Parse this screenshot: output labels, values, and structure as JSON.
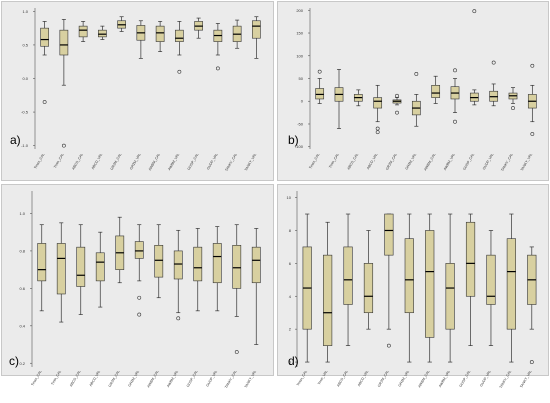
{
  "colors": {
    "panel_bg": "#ebebeb",
    "box_fill": "#d8d0a0",
    "box_stroke": "#333333",
    "axis": "#555555",
    "tick_text": "#333333"
  },
  "chart_data": [
    {
      "type": "box",
      "panel_label": "a)",
      "ylim": [
        -1.05,
        1.05
      ],
      "yticks": [
        -1.0,
        -0.5,
        0.0,
        0.5,
        1.0
      ],
      "ytick_labels": [
        "-1.0",
        "-0.5",
        "0.0",
        "0.5",
        "1.0"
      ],
      "categories": [
        "Tmax_CAL",
        "Tmin_CAL",
        "ABCD_CAL",
        "ABCD_VAL",
        "GR2M_CAL",
        "GR2M_VAL",
        "AWBM_CAL",
        "AWBM_VAL",
        "GUDP_CAL",
        "GUDP_VAL",
        "TANKY_CAL",
        "TANKY_VAL"
      ],
      "boxes": [
        {
          "min": 0.35,
          "q1": 0.48,
          "median": 0.58,
          "q3": 0.75,
          "max": 0.85,
          "outliers": [
            -0.35
          ]
        },
        {
          "min": -0.1,
          "q1": 0.35,
          "median": 0.5,
          "q3": 0.72,
          "max": 0.88,
          "outliers": [
            -1.0
          ]
        },
        {
          "min": 0.55,
          "q1": 0.62,
          "median": 0.72,
          "q3": 0.78,
          "max": 0.85,
          "outliers": []
        },
        {
          "min": 0.58,
          "q1": 0.62,
          "median": 0.66,
          "q3": 0.72,
          "max": 0.78,
          "outliers": []
        },
        {
          "min": 0.7,
          "q1": 0.75,
          "median": 0.8,
          "q3": 0.86,
          "max": 0.92,
          "outliers": []
        },
        {
          "min": 0.3,
          "q1": 0.57,
          "median": 0.68,
          "q3": 0.79,
          "max": 0.86,
          "outliers": []
        },
        {
          "min": 0.4,
          "q1": 0.55,
          "median": 0.68,
          "q3": 0.78,
          "max": 0.85,
          "outliers": []
        },
        {
          "min": 0.35,
          "q1": 0.55,
          "median": 0.6,
          "q3": 0.72,
          "max": 0.85,
          "outliers": [
            0.1
          ]
        },
        {
          "min": 0.6,
          "q1": 0.72,
          "median": 0.78,
          "q3": 0.85,
          "max": 0.9,
          "outliers": []
        },
        {
          "min": 0.35,
          "q1": 0.55,
          "median": 0.64,
          "q3": 0.72,
          "max": 0.82,
          "outliers": [
            0.15
          ]
        },
        {
          "min": 0.45,
          "q1": 0.55,
          "median": 0.66,
          "q3": 0.78,
          "max": 0.87,
          "outliers": []
        },
        {
          "min": 0.3,
          "q1": 0.6,
          "median": 0.78,
          "q3": 0.86,
          "max": 0.92,
          "outliers": []
        }
      ]
    },
    {
      "type": "box",
      "panel_label": "b)",
      "ylim": [
        -105,
        205
      ],
      "yticks": [
        -100,
        -50,
        0,
        50,
        100,
        150,
        200
      ],
      "ytick_labels": [
        "-100",
        "-50",
        "0",
        "50",
        "100",
        "150",
        "200"
      ],
      "categories": [
        "Tmax_CAL",
        "Tmin_CAL",
        "ABCD_CAL",
        "ABCD_VAL",
        "GR2M_CAL",
        "GR2M_VAL",
        "AWBM_CAL",
        "AWBM_VAL",
        "GUDP_CAL",
        "GUDP_VAL",
        "TANKY_CAL",
        "TANKY_VAL"
      ],
      "boxes": [
        {
          "min": -5,
          "q1": 5,
          "median": 15,
          "q3": 28,
          "max": 50,
          "outliers": [
            65
          ]
        },
        {
          "min": -60,
          "q1": 0,
          "median": 15,
          "q3": 30,
          "max": 70,
          "outliers": []
        },
        {
          "min": -10,
          "q1": 0,
          "median": 8,
          "q3": 15,
          "max": 25,
          "outliers": []
        },
        {
          "min": -45,
          "q1": -15,
          "median": 0,
          "q3": 8,
          "max": 35,
          "outliers": [
            -60,
            -68
          ]
        },
        {
          "min": -8,
          "q1": -4,
          "median": 0,
          "q3": 3,
          "max": 8,
          "outliers": [
            -25,
            12
          ]
        },
        {
          "min": -55,
          "q1": -30,
          "median": -15,
          "q3": 0,
          "max": 15,
          "outliers": [
            60
          ]
        },
        {
          "min": -5,
          "q1": 8,
          "median": 18,
          "q3": 35,
          "max": 55,
          "outliers": []
        },
        {
          "min": -25,
          "q1": 5,
          "median": 18,
          "q3": 32,
          "max": 50,
          "outliers": [
            -45,
            68
          ]
        },
        {
          "min": -8,
          "q1": 0,
          "median": 8,
          "q3": 18,
          "max": 25,
          "outliers": [
            198
          ]
        },
        {
          "min": -10,
          "q1": 0,
          "median": 10,
          "q3": 22,
          "max": 38,
          "outliers": [
            85
          ]
        },
        {
          "min": -5,
          "q1": 5,
          "median": 12,
          "q3": 18,
          "max": 30,
          "outliers": [
            -15
          ]
        },
        {
          "min": -45,
          "q1": -15,
          "median": 0,
          "q3": 15,
          "max": 35,
          "outliers": [
            78,
            -72
          ]
        }
      ]
    },
    {
      "type": "box",
      "panel_label": "c)",
      "ylim": [
        0.18,
        1.12
      ],
      "yticks": [
        0.2,
        0.4,
        0.6,
        0.8,
        1.0
      ],
      "ytick_labels": [
        "0.2",
        "0.4",
        "0.6",
        "0.8",
        "1.0"
      ],
      "categories": [
        "Tmax_CAL",
        "Tmin_CAL",
        "ABCD_CAL",
        "ABCD_VAL",
        "GR2M_CAL",
        "GR2M_VAL",
        "AWBM_CAL",
        "AWBM_VAL",
        "GUDP_CAL",
        "GUDP_VAL",
        "TANKY_CAL",
        "TANKY_VAL"
      ],
      "boxes": [
        {
          "min": 0.48,
          "q1": 0.64,
          "median": 0.7,
          "q3": 0.84,
          "max": 0.94,
          "outliers": []
        },
        {
          "min": 0.42,
          "q1": 0.57,
          "median": 0.76,
          "q3": 0.84,
          "max": 0.95,
          "outliers": []
        },
        {
          "min": 0.46,
          "q1": 0.61,
          "median": 0.67,
          "q3": 0.82,
          "max": 0.94,
          "outliers": []
        },
        {
          "min": 0.5,
          "q1": 0.64,
          "median": 0.74,
          "q3": 0.79,
          "max": 0.9,
          "outliers": []
        },
        {
          "min": 0.63,
          "q1": 0.7,
          "median": 0.79,
          "q3": 0.88,
          "max": 0.98,
          "outliers": []
        },
        {
          "min": 0.64,
          "q1": 0.76,
          "median": 0.8,
          "q3": 0.85,
          "max": 0.94,
          "outliers": [
            0.55,
            0.46
          ]
        },
        {
          "min": 0.55,
          "q1": 0.66,
          "median": 0.75,
          "q3": 0.83,
          "max": 0.94,
          "outliers": []
        },
        {
          "min": 0.47,
          "q1": 0.65,
          "median": 0.73,
          "q3": 0.8,
          "max": 0.91,
          "outliers": [
            0.44
          ]
        },
        {
          "min": 0.48,
          "q1": 0.64,
          "median": 0.71,
          "q3": 0.82,
          "max": 0.92,
          "outliers": []
        },
        {
          "min": 0.48,
          "q1": 0.63,
          "median": 0.77,
          "q3": 0.84,
          "max": 0.93,
          "outliers": []
        },
        {
          "min": 0.45,
          "q1": 0.6,
          "median": 0.71,
          "q3": 0.83,
          "max": 0.94,
          "outliers": [
            0.26
          ]
        },
        {
          "min": 0.3,
          "q1": 0.63,
          "median": 0.75,
          "q3": 0.82,
          "max": 0.92,
          "outliers": []
        }
      ]
    },
    {
      "type": "box",
      "panel_label": "d)",
      "ylim": [
        -0.3,
        10.4
      ],
      "yticks": [
        0,
        2,
        4,
        6,
        8,
        10
      ],
      "ytick_labels": [
        "0",
        "2",
        "4",
        "6",
        "8",
        "10"
      ],
      "categories": [
        "Tmax_CAL",
        "Tmin_VAL",
        "ABCD_CAL",
        "ABCD_VAL",
        "GR2M_CAL",
        "GR2M_VAL",
        "AWBM_CAL",
        "AWBM_VAL",
        "GUDP_CAL",
        "GUDP_VAL",
        "TANKY_CAL",
        "TANKY_VAL"
      ],
      "boxes": [
        {
          "min": 0,
          "q1": 2,
          "median": 4.5,
          "q3": 7,
          "max": 9,
          "outliers": []
        },
        {
          "min": 0,
          "q1": 1,
          "median": 3,
          "q3": 6.5,
          "max": 8.5,
          "outliers": []
        },
        {
          "min": 1,
          "q1": 3.5,
          "median": 5,
          "q3": 7,
          "max": 9,
          "outliers": []
        },
        {
          "min": 2,
          "q1": 3,
          "median": 4,
          "q3": 6,
          "max": 8,
          "outliers": []
        },
        {
          "min": 2,
          "q1": 6.5,
          "median": 8,
          "q3": 9,
          "max": 9,
          "outliers": [
            1
          ]
        },
        {
          "min": 0,
          "q1": 3,
          "median": 5,
          "q3": 7.5,
          "max": 9,
          "outliers": []
        },
        {
          "min": 0,
          "q1": 1.5,
          "median": 5.5,
          "q3": 8,
          "max": 9,
          "outliers": []
        },
        {
          "min": 0,
          "q1": 2,
          "median": 4.5,
          "q3": 6,
          "max": 9,
          "outliers": []
        },
        {
          "min": 1,
          "q1": 4,
          "median": 6,
          "q3": 8.5,
          "max": 9,
          "outliers": []
        },
        {
          "min": 1,
          "q1": 3.5,
          "median": 4,
          "q3": 6.5,
          "max": 8,
          "outliers": []
        },
        {
          "min": 0,
          "q1": 2,
          "median": 5.5,
          "q3": 7.5,
          "max": 9,
          "outliers": []
        },
        {
          "min": 2,
          "q1": 3.5,
          "median": 5,
          "q3": 6.5,
          "max": 7,
          "outliers": [
            0
          ]
        }
      ]
    }
  ]
}
